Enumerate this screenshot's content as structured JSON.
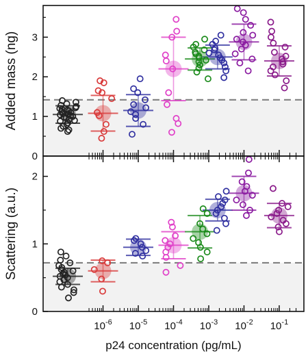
{
  "chart_data": [
    {
      "type": "scatter",
      "panel": "top",
      "ylabel": "Added mass (ng)",
      "ylim": [
        0,
        3.8
      ],
      "yticks": [
        0,
        1,
        2,
        3
      ],
      "threshold": 1.42,
      "groups": [
        {
          "x": 0.0,
          "color": "#222222",
          "mean": 1.05,
          "sd": 0.22,
          "values": [
            0.62,
            0.66,
            0.7,
            0.75,
            0.8,
            0.84,
            0.88,
            0.9,
            0.93,
            0.96,
            0.98,
            1.0,
            1.02,
            1.04,
            1.06,
            1.08,
            1.1,
            1.12,
            1.14,
            1.16,
            1.18,
            1.2,
            1.22,
            1.25,
            1.28,
            1.32,
            1.36,
            1.4
          ]
        },
        {
          "x": 1.0,
          "color": "#d93a3a",
          "mean": 1.08,
          "sd": 0.45,
          "values": [
            0.45,
            0.62,
            0.8,
            1.02,
            1.1,
            1.45,
            1.6,
            1.65,
            1.85,
            1.9
          ]
        },
        {
          "x": 2.0,
          "color": "#3030a0",
          "mean": 1.15,
          "sd": 0.4,
          "values": [
            0.55,
            0.8,
            0.95,
            1.05,
            1.12,
            1.22,
            1.3,
            1.42,
            1.6,
            1.7,
            1.95
          ]
        },
        {
          "x": 3.0,
          "color": "#e040c8",
          "mean": 2.2,
          "sd": 0.8,
          "values": [
            0.6,
            0.82,
            0.95,
            1.3,
            1.6,
            2.2,
            2.4,
            2.55,
            3.0,
            3.15,
            3.45
          ]
        },
        {
          "x": 3.75,
          "color": "#1a8a1a",
          "mean": 2.45,
          "sd": 0.28,
          "values": [
            1.95,
            2.12,
            2.22,
            2.3,
            2.38,
            2.42,
            2.48,
            2.52,
            2.58,
            2.62,
            2.68,
            2.75,
            2.82,
            2.95
          ]
        },
        {
          "x": 4.25,
          "color": "#3030a0",
          "mean": 2.5,
          "sd": 0.3,
          "values": [
            1.98,
            2.15,
            2.25,
            2.35,
            2.42,
            2.48,
            2.55,
            2.6,
            2.68,
            2.72,
            2.82,
            2.9,
            3.05
          ]
        },
        {
          "x": 5.0,
          "color": "#8a1aa0",
          "mean": 2.88,
          "sd": 0.45,
          "values": [
            2.15,
            2.35,
            2.45,
            2.58,
            2.7,
            2.8,
            2.88,
            2.95,
            3.05,
            3.12,
            3.3,
            3.45,
            3.62,
            3.72
          ]
        },
        {
          "x": 6.0,
          "color": "#8a1a8a",
          "mean": 2.4,
          "sd": 0.38,
          "values": [
            1.72,
            1.9,
            2.05,
            2.15,
            2.25,
            2.32,
            2.38,
            2.45,
            2.52,
            2.62,
            2.75,
            2.85,
            3.0,
            3.15,
            3.38
          ]
        }
      ]
    },
    {
      "type": "scatter",
      "panel": "bottom",
      "ylabel": "Scattering (a.u.)",
      "ylim": [
        0,
        2.3
      ],
      "yticks": [
        0,
        1,
        2
      ],
      "threshold": 0.72,
      "groups": [
        {
          "x": 0.0,
          "color": "#222222",
          "mean": 0.52,
          "sd": 0.12,
          "values": [
            0.2,
            0.28,
            0.32,
            0.36,
            0.4,
            0.44,
            0.47,
            0.5,
            0.52,
            0.54,
            0.56,
            0.58,
            0.6,
            0.62,
            0.65,
            0.68,
            0.72,
            0.76,
            0.82,
            0.88
          ]
        },
        {
          "x": 1.0,
          "color": "#d93a3a",
          "mean": 0.6,
          "sd": 0.16,
          "values": [
            0.3,
            0.48,
            0.62,
            0.72,
            0.75
          ]
        },
        {
          "x": 2.0,
          "color": "#3030a0",
          "mean": 0.95,
          "sd": 0.12,
          "values": [
            0.82,
            0.86,
            0.9,
            0.95,
            1.0,
            1.05,
            1.08
          ]
        },
        {
          "x": 3.0,
          "color": "#e040c8",
          "mean": 0.98,
          "sd": 0.2,
          "values": [
            0.58,
            0.68,
            0.8,
            0.88,
            0.95,
            1.0,
            1.05,
            1.12,
            1.25,
            1.32
          ]
        },
        {
          "x": 3.75,
          "color": "#1a8a1a",
          "mean": 1.18,
          "sd": 0.24,
          "values": [
            0.78,
            0.88,
            0.95,
            1.02,
            1.08,
            1.15,
            1.22,
            1.3,
            1.45,
            1.52
          ]
        },
        {
          "x": 4.25,
          "color": "#3030a0",
          "mean": 1.5,
          "sd": 0.16,
          "values": [
            1.2,
            1.3,
            1.38,
            1.45,
            1.5,
            1.55,
            1.6,
            1.65,
            1.7,
            1.78
          ]
        },
        {
          "x": 5.0,
          "color": "#8a1aa0",
          "mean": 1.75,
          "sd": 0.25,
          "values": [
            1.42,
            1.5,
            1.58,
            1.65,
            1.72,
            1.78,
            1.85,
            1.92,
            2.05,
            2.25
          ]
        },
        {
          "x": 6.0,
          "color": "#8a1a8a",
          "mean": 1.42,
          "sd": 0.18,
          "values": [
            1.18,
            1.25,
            1.3,
            1.35,
            1.4,
            1.45,
            1.5,
            1.55,
            1.6,
            1.82
          ]
        }
      ]
    }
  ],
  "shared_x": {
    "xlabel": "p24 concentration (pg/mL)",
    "tick_base": "10",
    "tick_exponents": [
      "-6",
      "-5",
      "-4",
      "-3",
      "-2",
      "-1"
    ],
    "tick_positions": [
      1,
      2,
      3,
      4,
      5,
      6
    ],
    "xlim": [
      -0.7,
      6.7
    ],
    "threshold_color": "#808080",
    "shade_color": "#f2f2f2"
  }
}
